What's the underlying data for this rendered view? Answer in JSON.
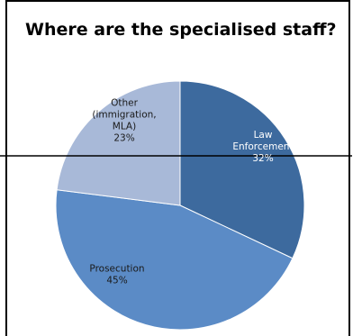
{
  "chart_data": {
    "type": "pie",
    "title": "Where are the specialised staff?",
    "slices": [
      {
        "label_lines": [
          "Law",
          "Enforcement"
        ],
        "pct_label": "32%",
        "value": 32,
        "color": "#3d6a9e",
        "text_color": "#ffffff"
      },
      {
        "label_lines": [
          "Prosecution"
        ],
        "pct_label": "45%",
        "value": 45,
        "color": "#5b8bc6",
        "text_color": "#1a1a1a"
      },
      {
        "label_lines": [
          "Other",
          "(immigration,",
          "MLA)"
        ],
        "pct_label": "23%",
        "value": 23,
        "color": "#a8b9d8",
        "text_color": "#1a1a1a"
      }
    ],
    "legend": "none"
  }
}
